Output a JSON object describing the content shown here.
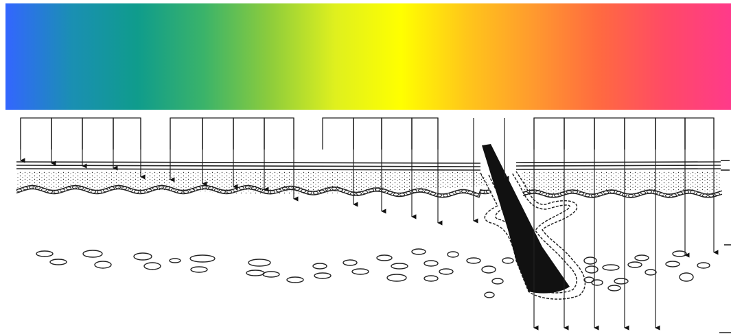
{
  "spectrum": {
    "colors": [
      "#3366ff",
      "#1a8fb3",
      "#0f9c8c",
      "#3ab36a",
      "#8ccc3c",
      "#dff01e",
      "#ffff00",
      "#ffc61a",
      "#ff9a2e",
      "#ff6a40",
      "#ff4a66",
      "#ff3a8a"
    ]
  },
  "diagram": {
    "ink_color": "#111111",
    "layers": [
      "stratum-corneum",
      "epidermis",
      "basal-layer",
      "dermis"
    ],
    "structures": [
      "hair-shaft",
      "hair-follicle",
      "collagen-cells"
    ],
    "light_rays_count": 22
  }
}
